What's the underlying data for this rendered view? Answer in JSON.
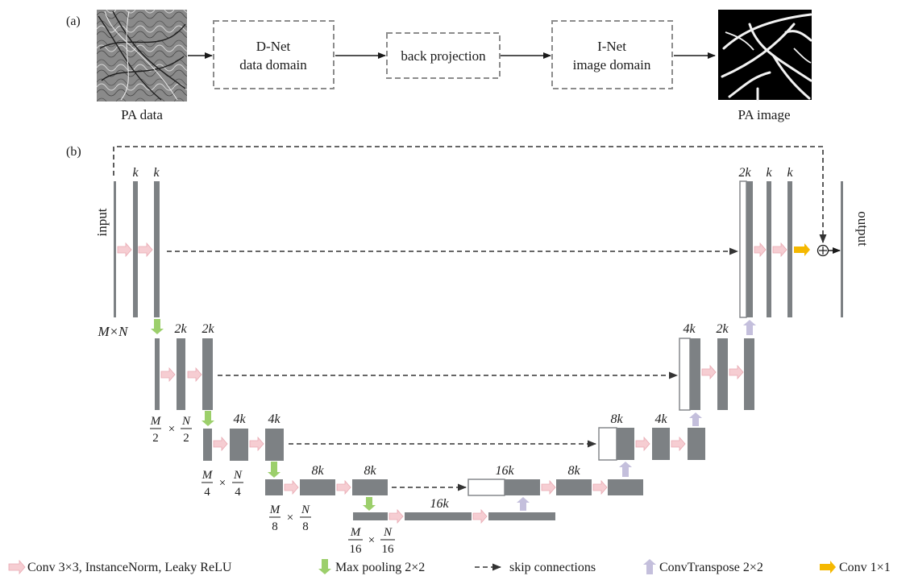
{
  "panel_a": {
    "label": "(a)",
    "pa_data_caption": "PA data",
    "dnet_line1": "D-Net",
    "dnet_line2": "data domain",
    "back_projection": "back projection",
    "inet_line1": "I-Net",
    "inet_line2": "image domain",
    "pa_image_caption": "PA image"
  },
  "panel_b": {
    "label": "(b)",
    "input_label": "input",
    "output_label": "output",
    "size_full": "M×N",
    "channels": {
      "k": "k",
      "two_k": "2k",
      "four_k": "4k",
      "eight_k": "8k",
      "sixteen_k": "16k"
    },
    "sizes": {
      "m": "M",
      "n": "N",
      "times": "×",
      "d2": "2",
      "d4": "4",
      "d8": "8",
      "d16": "16"
    },
    "plus_symbol": "+"
  },
  "legend": {
    "conv": "Conv 3×3, InstanceNorm, Leaky ReLU",
    "maxpool": "Max pooling 2×2",
    "skip": "skip connections",
    "convT": "ConvTranspose 2×2",
    "conv1": "Conv 1×1"
  },
  "colors": {
    "block": "#7d8184",
    "conv_arrow": "#f6cdd2",
    "pool_arrow": "#9ccf6b",
    "convT_arrow": "#c4bfdc",
    "conv1_arrow": "#f5b800",
    "dash_box": "#8c8c8c"
  }
}
